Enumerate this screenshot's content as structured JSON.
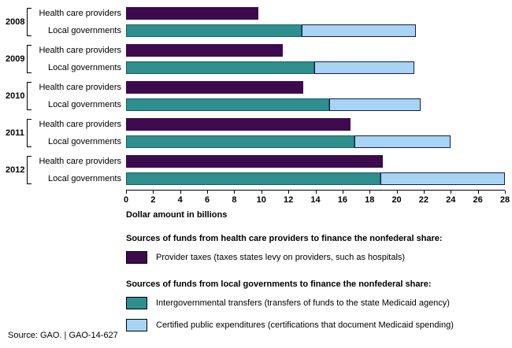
{
  "chart_data": {
    "type": "bar",
    "orientation": "horizontal",
    "title": "",
    "xlabel": "Dollar amount in billions",
    "xlim": [
      0,
      28
    ],
    "ticks": [
      0,
      2,
      4,
      6,
      8,
      10,
      12,
      14,
      16,
      18,
      20,
      22,
      24,
      26,
      28
    ],
    "colors": {
      "provider_taxes": "#3d0a4d",
      "igt": "#2e8f8e",
      "cpe": "#a6d4f2"
    },
    "series": [
      {
        "key": "provider_taxes",
        "name": "Provider taxes"
      },
      {
        "key": "igt",
        "name": "Intergovernmental transfers"
      },
      {
        "key": "cpe",
        "name": "Certified public expenditures"
      }
    ],
    "groups": [
      {
        "year": "2008",
        "rows": [
          {
            "label": "Health care providers",
            "segments": [
              {
                "key": "provider_taxes",
                "value": 9.8
              }
            ]
          },
          {
            "label": "Local governments",
            "segments": [
              {
                "key": "igt",
                "value": 13.0
              },
              {
                "key": "cpe",
                "value": 8.4
              }
            ]
          }
        ]
      },
      {
        "year": "2009",
        "rows": [
          {
            "label": "Health care providers",
            "segments": [
              {
                "key": "provider_taxes",
                "value": 11.6
              }
            ]
          },
          {
            "label": "Local governments",
            "segments": [
              {
                "key": "igt",
                "value": 13.9
              },
              {
                "key": "cpe",
                "value": 7.4
              }
            ]
          }
        ]
      },
      {
        "year": "2010",
        "rows": [
          {
            "label": "Health care providers",
            "segments": [
              {
                "key": "provider_taxes",
                "value": 13.1
              }
            ]
          },
          {
            "label": "Local governments",
            "segments": [
              {
                "key": "igt",
                "value": 15.0
              },
              {
                "key": "cpe",
                "value": 6.8
              }
            ]
          }
        ]
      },
      {
        "year": "2011",
        "rows": [
          {
            "label": "Health care providers",
            "segments": [
              {
                "key": "provider_taxes",
                "value": 16.6
              }
            ]
          },
          {
            "label": "Local governments",
            "segments": [
              {
                "key": "igt",
                "value": 16.9
              },
              {
                "key": "cpe",
                "value": 7.1
              }
            ]
          }
        ]
      },
      {
        "year": "2012",
        "rows": [
          {
            "label": "Health care providers",
            "segments": [
              {
                "key": "provider_taxes",
                "value": 19.0
              }
            ]
          },
          {
            "label": "Local governments",
            "segments": [
              {
                "key": "igt",
                "value": 18.8
              },
              {
                "key": "cpe",
                "value": 9.2
              }
            ]
          }
        ]
      }
    ]
  },
  "legend": {
    "provider_header": "Sources of funds from health care providers to finance the nonfederal share:",
    "provider_taxes_label": "Provider taxes (taxes states levy on providers, such as hospitals)",
    "local_header": "Sources of funds from local governments to finance the nonfederal share:",
    "igt_label": "Intergovernmental transfers (transfers of funds to the state Medicaid agency)",
    "cpe_label": "Certified public expenditures (certifications that document Medicaid spending)"
  },
  "footer": "Source: GAO.  |  GAO-14-627"
}
